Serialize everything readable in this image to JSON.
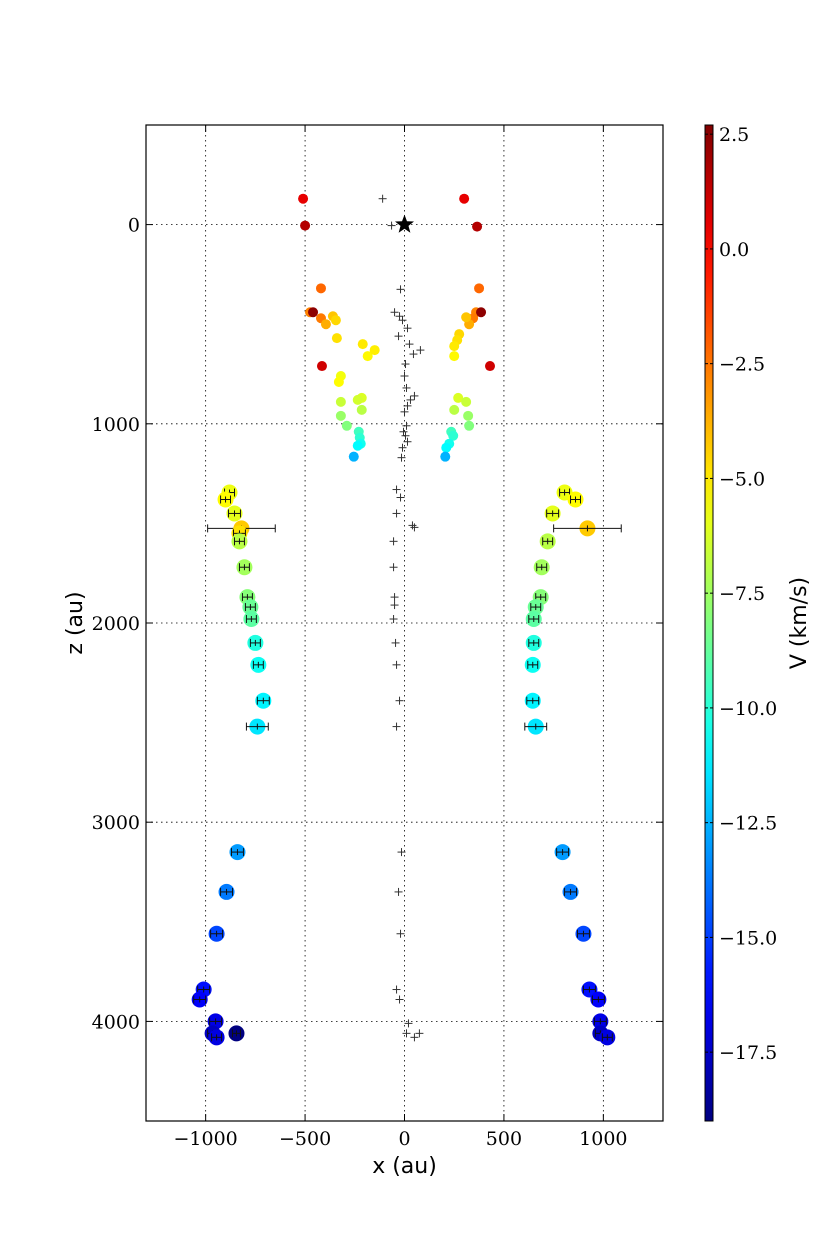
{
  "chart_data": {
    "type": "scatter",
    "title": "",
    "xlabel": "x (au)",
    "ylabel": "z (au)",
    "xlim": [
      -1300,
      1300
    ],
    "ylim": [
      4500,
      -500
    ],
    "y_inverted": true,
    "grid": true,
    "grid_style": "dotted",
    "x_ticks": [
      -1000,
      -500,
      0,
      500,
      1000
    ],
    "x_tick_labels": [
      "−1000",
      "−500",
      "0",
      "500",
      "1000"
    ],
    "y_ticks": [
      0,
      1000,
      2000,
      3000,
      4000
    ],
    "y_tick_labels": [
      "0",
      "1000",
      "2000",
      "3000",
      "4000"
    ],
    "colorbar": {
      "label": "V (km/s)",
      "colormap": "jet",
      "vmin": -19.0,
      "vmax": 2.7,
      "ticks": [
        2.5,
        0.0,
        -2.5,
        -5.0,
        -7.5,
        -10.0,
        -12.5,
        -15.0,
        -17.5
      ],
      "tick_labels": [
        "2.5",
        "0.0",
        "−2.5",
        "−5.0",
        "−7.5",
        "−10.0",
        "−12.5",
        "−15.0",
        "−17.5"
      ]
    },
    "star": {
      "x": 0,
      "z": 0
    },
    "inner_points": [
      {
        "x": -510,
        "z": -130,
        "v": 0.5
      },
      {
        "x": -500,
        "z": 5,
        "v": 1.6
      },
      {
        "x": 300,
        "z": -130,
        "v": 0.5
      },
      {
        "x": 365,
        "z": 10,
        "v": 1.6
      },
      {
        "x": -420,
        "z": 320,
        "v": -2.2
      },
      {
        "x": -475,
        "z": 440,
        "v": -2.8
      },
      {
        "x": -460,
        "z": 440,
        "v": 2.4
      },
      {
        "x": -420,
        "z": 470,
        "v": -2.6
      },
      {
        "x": -395,
        "z": 500,
        "v": -3.7
      },
      {
        "x": -360,
        "z": 460,
        "v": -4.2
      },
      {
        "x": -345,
        "z": 480,
        "v": -4.6
      },
      {
        "x": -340,
        "z": 570,
        "v": -4.8
      },
      {
        "x": -210,
        "z": 600,
        "v": -5.0
      },
      {
        "x": -185,
        "z": 660,
        "v": -5.3
      },
      {
        "x": -150,
        "z": 630,
        "v": -5.1
      },
      {
        "x": -415,
        "z": 710,
        "v": 1.0
      },
      {
        "x": -320,
        "z": 760,
        "v": -5.7
      },
      {
        "x": -330,
        "z": 790,
        "v": -5.4
      },
      {
        "x": -320,
        "z": 890,
        "v": -6.6
      },
      {
        "x": -215,
        "z": 870,
        "v": -6.2
      },
      {
        "x": -235,
        "z": 880,
        "v": -6.4
      },
      {
        "x": -215,
        "z": 930,
        "v": -6.9
      },
      {
        "x": -320,
        "z": 960,
        "v": -7.6
      },
      {
        "x": -290,
        "z": 1010,
        "v": -8.1
      },
      {
        "x": -230,
        "z": 1040,
        "v": -9.5
      },
      {
        "x": -225,
        "z": 1070,
        "v": -9.9
      },
      {
        "x": -220,
        "z": 1100,
        "v": -10.5
      },
      {
        "x": -235,
        "z": 1110,
        "v": -10.9
      },
      {
        "x": -255,
        "z": 1165,
        "v": -12.5
      },
      {
        "x": 375,
        "z": 320,
        "v": -2.2
      },
      {
        "x": 360,
        "z": 440,
        "v": -2.8
      },
      {
        "x": 385,
        "z": 440,
        "v": 2.4
      },
      {
        "x": 345,
        "z": 470,
        "v": -2.6
      },
      {
        "x": 325,
        "z": 500,
        "v": -3.7
      },
      {
        "x": 310,
        "z": 465,
        "v": -4.2
      },
      {
        "x": 275,
        "z": 550,
        "v": -4.6
      },
      {
        "x": 265,
        "z": 580,
        "v": -4.8
      },
      {
        "x": 250,
        "z": 610,
        "v": -5.0
      },
      {
        "x": 250,
        "z": 660,
        "v": -5.3
      },
      {
        "x": 430,
        "z": 710,
        "v": 1.0
      },
      {
        "x": 270,
        "z": 870,
        "v": -6.2
      },
      {
        "x": 310,
        "z": 890,
        "v": -6.6
      },
      {
        "x": 250,
        "z": 930,
        "v": -6.9
      },
      {
        "x": 320,
        "z": 960,
        "v": -7.6
      },
      {
        "x": 325,
        "z": 1010,
        "v": -8.1
      },
      {
        "x": 235,
        "z": 1040,
        "v": -9.5
      },
      {
        "x": 245,
        "z": 1060,
        "v": -9.9
      },
      {
        "x": 225,
        "z": 1100,
        "v": -10.5
      },
      {
        "x": 210,
        "z": 1120,
        "v": -10.9
      },
      {
        "x": 205,
        "z": 1165,
        "v": -12.5
      }
    ],
    "outer_points": [
      {
        "x": -880,
        "z": 1345,
        "v": -5.8,
        "xerr": 25
      },
      {
        "x": -900,
        "z": 1380,
        "v": -5.4,
        "xerr": 25
      },
      {
        "x": -855,
        "z": 1450,
        "v": -6.0,
        "xerr": 30
      },
      {
        "x": -820,
        "z": 1525,
        "v": -4.3,
        "xerr": 170
      },
      {
        "x": -830,
        "z": 1550,
        "v": -4.8,
        "xerr": 30
      },
      {
        "x": -830,
        "z": 1590,
        "v": -6.9,
        "xerr": 25
      },
      {
        "x": -805,
        "z": 1720,
        "v": -7.4,
        "xerr": 25
      },
      {
        "x": -790,
        "z": 1870,
        "v": -8.0,
        "xerr": 25
      },
      {
        "x": -775,
        "z": 1920,
        "v": -8.6,
        "xerr": 25
      },
      {
        "x": -770,
        "z": 1980,
        "v": -8.9,
        "xerr": 25
      },
      {
        "x": -750,
        "z": 2100,
        "v": -10.2,
        "xerr": 25
      },
      {
        "x": -735,
        "z": 2210,
        "v": -10.6,
        "xerr": 25
      },
      {
        "x": -710,
        "z": 2390,
        "v": -11.1,
        "xerr": 30
      },
      {
        "x": -740,
        "z": 2520,
        "v": -11.4,
        "xerr": 55
      },
      {
        "x": -840,
        "z": 3150,
        "v": -13.0,
        "xerr": 30
      },
      {
        "x": -895,
        "z": 3350,
        "v": -13.7,
        "xerr": 30
      },
      {
        "x": -945,
        "z": 3560,
        "v": -14.8,
        "xerr": 30
      },
      {
        "x": -1010,
        "z": 3840,
        "v": -16.0,
        "xerr": 30
      },
      {
        "x": -1030,
        "z": 3890,
        "v": -16.4,
        "xerr": 30
      },
      {
        "x": -950,
        "z": 4000,
        "v": -16.8,
        "xerr": 30
      },
      {
        "x": -965,
        "z": 4060,
        "v": -17.6,
        "xerr": 25
      },
      {
        "x": -945,
        "z": 4080,
        "v": -16.9,
        "xerr": 25
      },
      {
        "x": -845,
        "z": 4060,
        "v": -19.0,
        "xerr": 20
      },
      {
        "x": 805,
        "z": 1345,
        "v": -5.8,
        "xerr": 25
      },
      {
        "x": 860,
        "z": 1380,
        "v": -5.4,
        "xerr": 25
      },
      {
        "x": 745,
        "z": 1450,
        "v": -6.0,
        "xerr": 30
      },
      {
        "x": 920,
        "z": 1525,
        "v": -4.3,
        "xerr": 170
      },
      {
        "x": 720,
        "z": 1590,
        "v": -6.9,
        "xerr": 25
      },
      {
        "x": 690,
        "z": 1720,
        "v": -7.4,
        "xerr": 25
      },
      {
        "x": 685,
        "z": 1870,
        "v": -8.0,
        "xerr": 25
      },
      {
        "x": 660,
        "z": 1920,
        "v": -8.6,
        "xerr": 25
      },
      {
        "x": 650,
        "z": 1980,
        "v": -8.9,
        "xerr": 25
      },
      {
        "x": 650,
        "z": 2100,
        "v": -10.2,
        "xerr": 25
      },
      {
        "x": 645,
        "z": 2210,
        "v": -10.6,
        "xerr": 25
      },
      {
        "x": 645,
        "z": 2390,
        "v": -11.1,
        "xerr": 30
      },
      {
        "x": 660,
        "z": 2520,
        "v": -11.4,
        "xerr": 55
      },
      {
        "x": 795,
        "z": 3150,
        "v": -13.0,
        "xerr": 30
      },
      {
        "x": 835,
        "z": 3350,
        "v": -13.7,
        "xerr": 30
      },
      {
        "x": 900,
        "z": 3560,
        "v": -14.8,
        "xerr": 30
      },
      {
        "x": 930,
        "z": 3840,
        "v": -16.0,
        "xerr": 30
      },
      {
        "x": 975,
        "z": 3890,
        "v": -16.4,
        "xerr": 30
      },
      {
        "x": 985,
        "z": 4000,
        "v": -16.8,
        "xerr": 30
      },
      {
        "x": 985,
        "z": 4060,
        "v": -17.6,
        "xerr": 25
      },
      {
        "x": 1020,
        "z": 4080,
        "v": -16.9,
        "xerr": 25
      }
    ],
    "plus_markers": [
      {
        "x": -110,
        "z": -130
      },
      {
        "x": -65,
        "z": 5
      },
      {
        "x": -20,
        "z": 325
      },
      {
        "x": -50,
        "z": 440
      },
      {
        "x": -25,
        "z": 460
      },
      {
        "x": -10,
        "z": 480
      },
      {
        "x": 15,
        "z": 520
      },
      {
        "x": -30,
        "z": 560
      },
      {
        "x": 25,
        "z": 600
      },
      {
        "x": 80,
        "z": 630
      },
      {
        "x": 45,
        "z": 650
      },
      {
        "x": 5,
        "z": 700
      },
      {
        "x": 0,
        "z": 760
      },
      {
        "x": 10,
        "z": 820
      },
      {
        "x": 50,
        "z": 860
      },
      {
        "x": 30,
        "z": 880
      },
      {
        "x": 15,
        "z": 910
      },
      {
        "x": 0,
        "z": 940
      },
      {
        "x": 10,
        "z": 1010
      },
      {
        "x": -5,
        "z": 1040
      },
      {
        "x": 5,
        "z": 1060
      },
      {
        "x": 15,
        "z": 1090
      },
      {
        "x": -10,
        "z": 1120
      },
      {
        "x": -15,
        "z": 1170
      },
      {
        "x": -40,
        "z": 1330
      },
      {
        "x": -20,
        "z": 1370
      },
      {
        "x": -40,
        "z": 1450
      },
      {
        "x": 40,
        "z": 1510
      },
      {
        "x": 50,
        "z": 1520
      },
      {
        "x": -55,
        "z": 1590
      },
      {
        "x": -55,
        "z": 1720
      },
      {
        "x": -50,
        "z": 1870
      },
      {
        "x": -50,
        "z": 1910
      },
      {
        "x": -55,
        "z": 1980
      },
      {
        "x": -45,
        "z": 2100
      },
      {
        "x": -40,
        "z": 2210
      },
      {
        "x": -25,
        "z": 2390
      },
      {
        "x": -40,
        "z": 2520
      },
      {
        "x": -15,
        "z": 3150
      },
      {
        "x": -30,
        "z": 3350
      },
      {
        "x": -20,
        "z": 3560
      },
      {
        "x": -40,
        "z": 3840
      },
      {
        "x": -25,
        "z": 3890
      },
      {
        "x": 20,
        "z": 4010
      },
      {
        "x": 10,
        "z": 4060
      },
      {
        "x": 50,
        "z": 4080
      },
      {
        "x": 75,
        "z": 4060
      }
    ]
  }
}
